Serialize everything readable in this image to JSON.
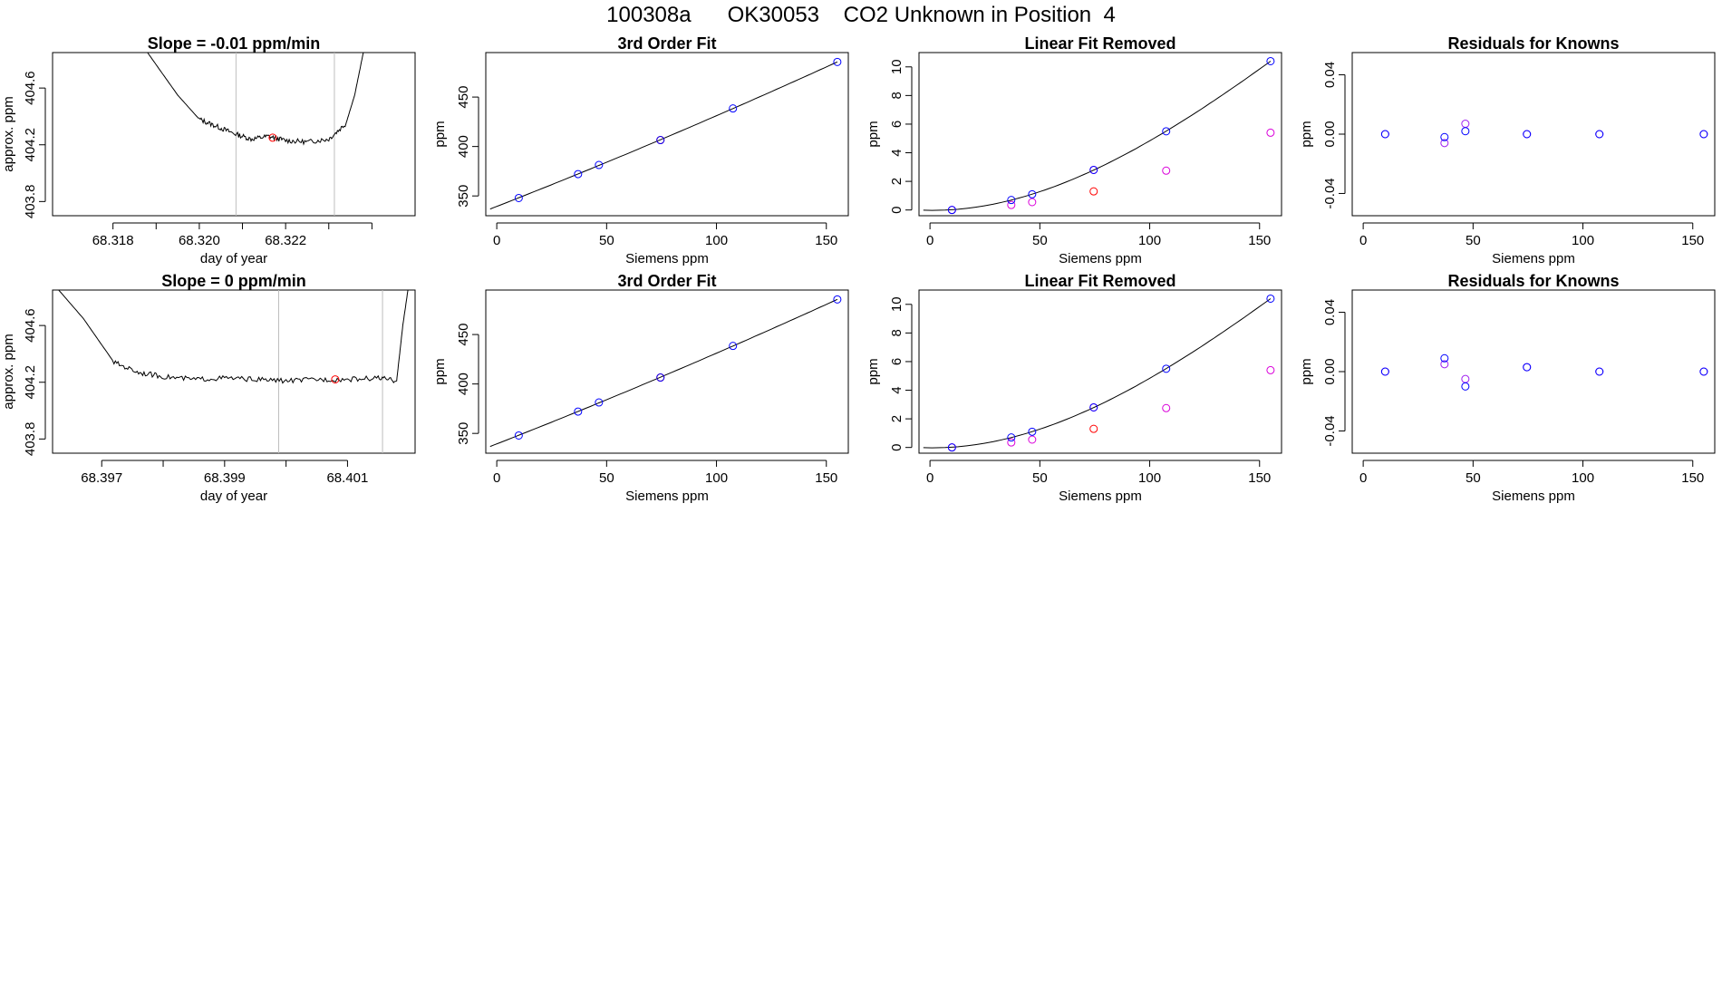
{
  "page_title": "100308a      OK30053    CO2 Unknown in Position  4",
  "colors": {
    "line": "#000000",
    "known": "#0000FF",
    "unknown": "#FF0000",
    "residual_alt": "#A020F0",
    "linear_removed_alt": "#DA00DA",
    "guide": "#BEBEBE"
  },
  "chart_data": [
    {
      "id": "r1-timeseries",
      "type": "line",
      "title": "Slope =  -0.01  ppm/min",
      "xlabel": "day of year",
      "ylabel": "approx. ppm",
      "xlim": [
        68.3166,
        68.325
      ],
      "ylim": [
        403.7,
        404.85
      ],
      "xticks": [
        68.318,
        68.319,
        68.32,
        68.321,
        68.322,
        68.323,
        68.324
      ],
      "xtick_labels": [
        "68.318",
        "",
        "68.320",
        "",
        "68.322",
        "",
        ""
      ],
      "yticks": [
        403.8,
        404.2,
        404.6
      ],
      "ytick_labels": [
        "403.8",
        "404.2",
        "404.6"
      ],
      "guide_lines_x": [
        68.32085,
        68.32313
      ],
      "series": [
        {
          "name": "trace",
          "points": [
            [
              68.3188,
              404.85
            ],
            [
              68.3195,
              404.55
            ],
            [
              68.32,
              404.38
            ],
            [
              68.3204,
              404.33
            ],
            [
              68.3208,
              404.28
            ],
            [
              68.3212,
              404.24
            ],
            [
              68.3216,
              404.26
            ],
            [
              68.322,
              404.23
            ],
            [
              68.3225,
              404.22
            ],
            [
              68.323,
              404.24
            ],
            [
              68.3234,
              404.35
            ],
            [
              68.3236,
              404.55
            ],
            [
              68.3238,
              404.85
            ]
          ]
        }
      ],
      "unknown_point": {
        "x": 68.3217,
        "y": 404.25
      }
    },
    {
      "id": "r1-fit",
      "type": "scatter",
      "title": "3rd Order Fit",
      "xlabel": "Siemens ppm",
      "ylabel": "ppm",
      "xlim": [
        -5,
        160
      ],
      "ylim": [
        330,
        495
      ],
      "xticks": [
        0,
        50,
        100,
        150
      ],
      "xtick_labels": [
        "0",
        "50",
        "100",
        "150"
      ],
      "yticks": [
        350,
        400,
        450
      ],
      "ytick_labels": [
        "350",
        "400",
        "450"
      ],
      "curve": "cubic",
      "fit_points": [
        [
          -3,
          336.9
        ],
        [
          10,
          347.9
        ],
        [
          37,
          372.1
        ],
        [
          46.5,
          381.3
        ],
        [
          74.5,
          406.5
        ],
        [
          107.5,
          438.5
        ],
        [
          155,
          485.5
        ]
      ],
      "known_points": [
        [
          10,
          347.9
        ],
        [
          37,
          372.1
        ],
        [
          46.5,
          381.3
        ],
        [
          74.5,
          406.5
        ],
        [
          107.5,
          438.5
        ],
        [
          155,
          485.5
        ]
      ],
      "unknown_points": [
        [
          74.5,
          406.5
        ]
      ]
    },
    {
      "id": "r1-linear",
      "type": "scatter",
      "title": "Linear Fit Removed",
      "xlabel": "Siemens ppm",
      "ylabel": "ppm",
      "xlim": [
        -5,
        160
      ],
      "ylim": [
        -0.4,
        11
      ],
      "xticks": [
        0,
        50,
        100,
        150
      ],
      "xtick_labels": [
        "0",
        "50",
        "100",
        "150"
      ],
      "yticks": [
        0,
        2,
        4,
        6,
        8,
        10
      ],
      "ytick_labels": [
        "0",
        "2",
        "4",
        "6",
        "8",
        "10"
      ],
      "curve": "quadratic",
      "fit_points": [
        [
          -3,
          0
        ],
        [
          10,
          0
        ],
        [
          37,
          0.7
        ],
        [
          46.5,
          1.1
        ],
        [
          74.5,
          2.8
        ],
        [
          107.5,
          5.5
        ],
        [
          155,
          10.4
        ]
      ],
      "known_points": [
        [
          10,
          0
        ],
        [
          37,
          0.7
        ],
        [
          46.5,
          1.1
        ],
        [
          74.5,
          2.8
        ],
        [
          107.5,
          5.5
        ],
        [
          155,
          10.4
        ]
      ],
      "alt_points": [
        [
          10,
          0
        ],
        [
          37,
          0.35
        ],
        [
          46.5,
          0.55
        ],
        [
          74.5,
          2.8
        ],
        [
          107.5,
          2.75
        ],
        [
          155,
          5.4
        ]
      ],
      "unknown_points": [
        [
          74.5,
          1.3
        ]
      ]
    },
    {
      "id": "r1-resid",
      "type": "scatter",
      "title": "Residuals for Knowns",
      "xlabel": "Siemens ppm",
      "ylabel": "ppm",
      "xlim": [
        -5,
        160
      ],
      "ylim": [
        -0.055,
        0.055
      ],
      "xticks": [
        0,
        50,
        100,
        150
      ],
      "xtick_labels": [
        "0",
        "50",
        "100",
        "150"
      ],
      "yticks": [
        -0.04,
        0.0,
        0.04
      ],
      "ytick_labels": [
        "-0.04",
        "0.00",
        "0.04"
      ],
      "known_points": [
        [
          10,
          0.0
        ],
        [
          37,
          -0.002
        ],
        [
          46.5,
          0.002
        ],
        [
          74.5,
          0.0
        ],
        [
          107.5,
          0.0
        ],
        [
          155,
          0.0
        ]
      ],
      "alt_points": [
        [
          10,
          0.0
        ],
        [
          37,
          -0.006
        ],
        [
          46.5,
          0.007
        ],
        [
          74.5,
          0.0
        ],
        [
          107.5,
          0.0
        ],
        [
          155,
          0.0
        ]
      ]
    },
    {
      "id": "r2-timeseries",
      "type": "line",
      "title": "Slope =  0  ppm/min",
      "xlabel": "day of year",
      "ylabel": "approx. ppm",
      "xlim": [
        68.3962,
        68.4021
      ],
      "ylim": [
        403.7,
        404.85
      ],
      "xticks": [
        68.397,
        68.398,
        68.399,
        68.4,
        68.401
      ],
      "xtick_labels": [
        "68.397",
        "",
        "68.399",
        "",
        "68.401"
      ],
      "yticks": [
        403.8,
        404.2,
        404.6
      ],
      "ytick_labels": [
        "403.8",
        "404.2",
        "404.6"
      ],
      "guide_lines_x": [
        68.39988,
        68.40157
      ],
      "series": [
        {
          "name": "trace",
          "points": [
            [
              68.3962,
              404.9
            ],
            [
              68.3967,
              404.65
            ],
            [
              68.3972,
              404.34
            ],
            [
              68.3976,
              404.27
            ],
            [
              68.398,
              404.24
            ],
            [
              68.3985,
              404.22
            ],
            [
              68.399,
              404.23
            ],
            [
              68.3995,
              404.22
            ],
            [
              68.4,
              404.21
            ],
            [
              68.4005,
              404.22
            ],
            [
              68.401,
              404.22
            ],
            [
              68.4015,
              404.23
            ],
            [
              68.4018,
              404.21
            ],
            [
              68.4019,
              404.6
            ],
            [
              68.402,
              404.9
            ]
          ]
        }
      ],
      "unknown_point": {
        "x": 68.4008,
        "y": 404.22
      }
    },
    {
      "id": "r2-fit",
      "type": "scatter",
      "title": "3rd Order Fit",
      "xlabel": "Siemens ppm",
      "ylabel": "ppm",
      "xlim": [
        -5,
        160
      ],
      "ylim": [
        330,
        495
      ],
      "xticks": [
        0,
        50,
        100,
        150
      ],
      "xtick_labels": [
        "0",
        "50",
        "100",
        "150"
      ],
      "yticks": [
        350,
        400,
        450
      ],
      "ytick_labels": [
        "350",
        "400",
        "450"
      ],
      "curve": "cubic",
      "fit_points": [
        [
          -3,
          336.9
        ],
        [
          10,
          347.9
        ],
        [
          37,
          372.1
        ],
        [
          46.5,
          381.3
        ],
        [
          74.5,
          406.5
        ],
        [
          107.5,
          438.5
        ],
        [
          155,
          485.5
        ]
      ],
      "known_points": [
        [
          10,
          347.9
        ],
        [
          37,
          372.1
        ],
        [
          46.5,
          381.3
        ],
        [
          74.5,
          406.5
        ],
        [
          107.5,
          438.5
        ],
        [
          155,
          485.5
        ]
      ],
      "unknown_points": [
        [
          74.5,
          406.5
        ]
      ]
    },
    {
      "id": "r2-linear",
      "type": "scatter",
      "title": "Linear Fit Removed",
      "xlabel": "Siemens ppm",
      "ylabel": "ppm",
      "xlim": [
        -5,
        160
      ],
      "ylim": [
        -0.4,
        11
      ],
      "xticks": [
        0,
        50,
        100,
        150
      ],
      "xtick_labels": [
        "0",
        "50",
        "100",
        "150"
      ],
      "yticks": [
        0,
        2,
        4,
        6,
        8,
        10
      ],
      "ytick_labels": [
        "0",
        "2",
        "4",
        "6",
        "8",
        "10"
      ],
      "curve": "quadratic",
      "fit_points": [
        [
          -3,
          0
        ],
        [
          10,
          0
        ],
        [
          37,
          0.7
        ],
        [
          46.5,
          1.1
        ],
        [
          74.5,
          2.8
        ],
        [
          107.5,
          5.5
        ],
        [
          155,
          10.4
        ]
      ],
      "known_points": [
        [
          10,
          0
        ],
        [
          37,
          0.7
        ],
        [
          46.5,
          1.1
        ],
        [
          74.5,
          2.8
        ],
        [
          107.5,
          5.5
        ],
        [
          155,
          10.4
        ]
      ],
      "alt_points": [
        [
          10,
          0
        ],
        [
          37,
          0.35
        ],
        [
          46.5,
          0.55
        ],
        [
          74.5,
          2.8
        ],
        [
          107.5,
          2.75
        ],
        [
          155,
          5.4
        ]
      ],
      "unknown_points": [
        [
          74.5,
          1.3
        ]
      ]
    },
    {
      "id": "r2-resid",
      "type": "scatter",
      "title": "Residuals for Knowns",
      "xlabel": "Siemens ppm",
      "ylabel": "ppm",
      "xlim": [
        -5,
        160
      ],
      "ylim": [
        -0.055,
        0.055
      ],
      "xticks": [
        0,
        50,
        100,
        150
      ],
      "xtick_labels": [
        "0",
        "50",
        "100",
        "150"
      ],
      "yticks": [
        -0.04,
        0.0,
        0.04
      ],
      "ytick_labels": [
        "-0.04",
        "0.00",
        "0.04"
      ],
      "known_points": [
        [
          10,
          0.0
        ],
        [
          37,
          0.009
        ],
        [
          46.5,
          -0.01
        ],
        [
          74.5,
          0.003
        ],
        [
          107.5,
          0.0
        ],
        [
          155,
          0.0
        ]
      ],
      "alt_points": [
        [
          10,
          0.0
        ],
        [
          37,
          0.005
        ],
        [
          46.5,
          -0.005
        ],
        [
          74.5,
          0.003
        ],
        [
          107.5,
          0.0
        ],
        [
          155,
          0.0
        ]
      ]
    }
  ]
}
